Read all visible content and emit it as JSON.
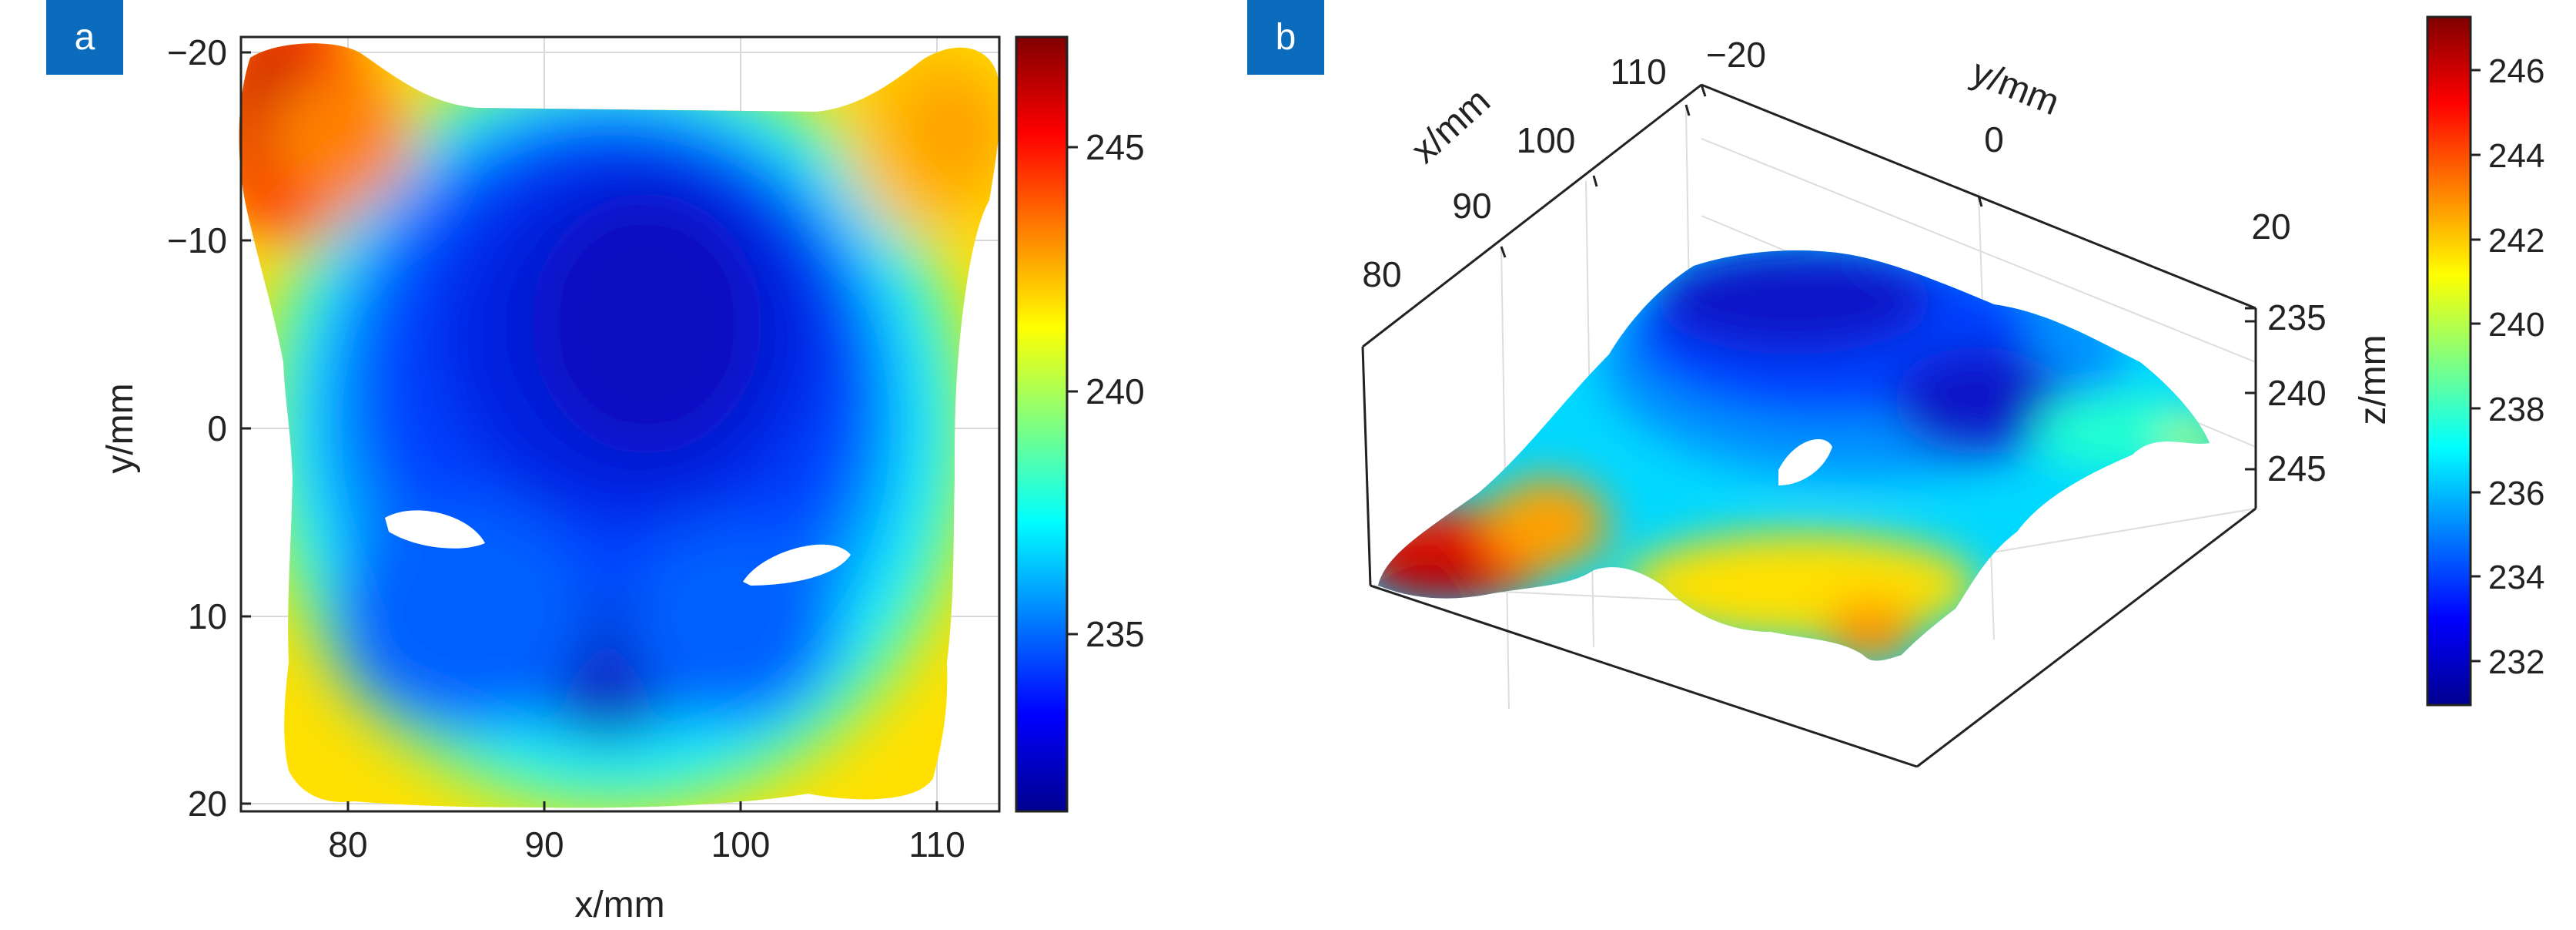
{
  "panels": [
    {
      "label": "a"
    },
    {
      "label": "b"
    }
  ],
  "chart_data": [
    {
      "type": "heatmap",
      "panel": "a",
      "xlabel": "x/mm",
      "ylabel": "y/mm",
      "xlim": [
        74.8,
        113.6
      ],
      "ylim": [
        -20.8,
        20.4
      ],
      "y_reversed": true,
      "x_ticks": [
        80,
        90,
        100,
        110
      ],
      "y_ticks": [
        -20,
        -10,
        0,
        10,
        20
      ],
      "grid": true,
      "colormap": "jet",
      "colorbar": {
        "range": [
          231,
          247.3
        ],
        "ticks": [
          235,
          240,
          245
        ]
      },
      "surface": "face-mask depth map (z in mm)",
      "z_min": 231.3,
      "z_max": 247.0
    },
    {
      "type": "surface3d",
      "panel": "b",
      "xlabel": "x/mm",
      "ylabel": "y/mm",
      "zlabel": "z/mm",
      "x_ticks": [
        80,
        90,
        100,
        110
      ],
      "y_ticks": [
        -20,
        0,
        20
      ],
      "z_ticks": [
        235,
        240,
        245
      ],
      "z_reversed": true,
      "grid": true,
      "colormap": "jet",
      "colorbar": {
        "range": [
          231.2,
          247.2
        ],
        "ticks": [
          232,
          234,
          236,
          238,
          240,
          242,
          244,
          246
        ]
      }
    }
  ]
}
